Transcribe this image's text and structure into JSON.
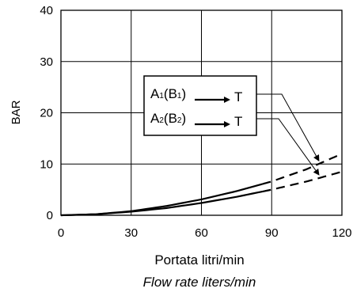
{
  "chart_data": {
    "type": "line",
    "xlabel": "Portata litri/min",
    "xlabel_secondary": "Flow rate liters/min",
    "ylabel": "BAR",
    "xlim": [
      0,
      120
    ],
    "ylim": [
      0,
      40
    ],
    "x_ticks": [
      "0",
      "30",
      "60",
      "90",
      "120"
    ],
    "y_ticks": [
      "0",
      "10",
      "20",
      "30",
      "40"
    ],
    "grid": true,
    "series": [
      {
        "name": "A1(B1) → T",
        "x": [
          0,
          15,
          30,
          45,
          60,
          75,
          90,
          105,
          120
        ],
        "y": [
          0,
          0.2,
          0.8,
          1.8,
          3.1,
          4.7,
          6.6,
          9.0,
          12.0
        ],
        "style": "solid to 86, dashed beyond"
      },
      {
        "name": "A2(B2) → T",
        "x": [
          0,
          15,
          30,
          45,
          60,
          75,
          90,
          105,
          120
        ],
        "y": [
          0,
          0.2,
          0.7,
          1.4,
          2.4,
          3.6,
          5.0,
          6.6,
          8.5
        ],
        "style": "solid to 86, dashed beyond"
      }
    ],
    "legend": {
      "placement": "center-right",
      "entries": [
        {
          "main": "A",
          "sub": "1",
          "paren_main": "B",
          "paren_sub": "1",
          "target": "T"
        },
        {
          "main": "A",
          "sub": "2",
          "paren_main": "B",
          "paren_sub": "2",
          "target": "T"
        }
      ]
    }
  }
}
